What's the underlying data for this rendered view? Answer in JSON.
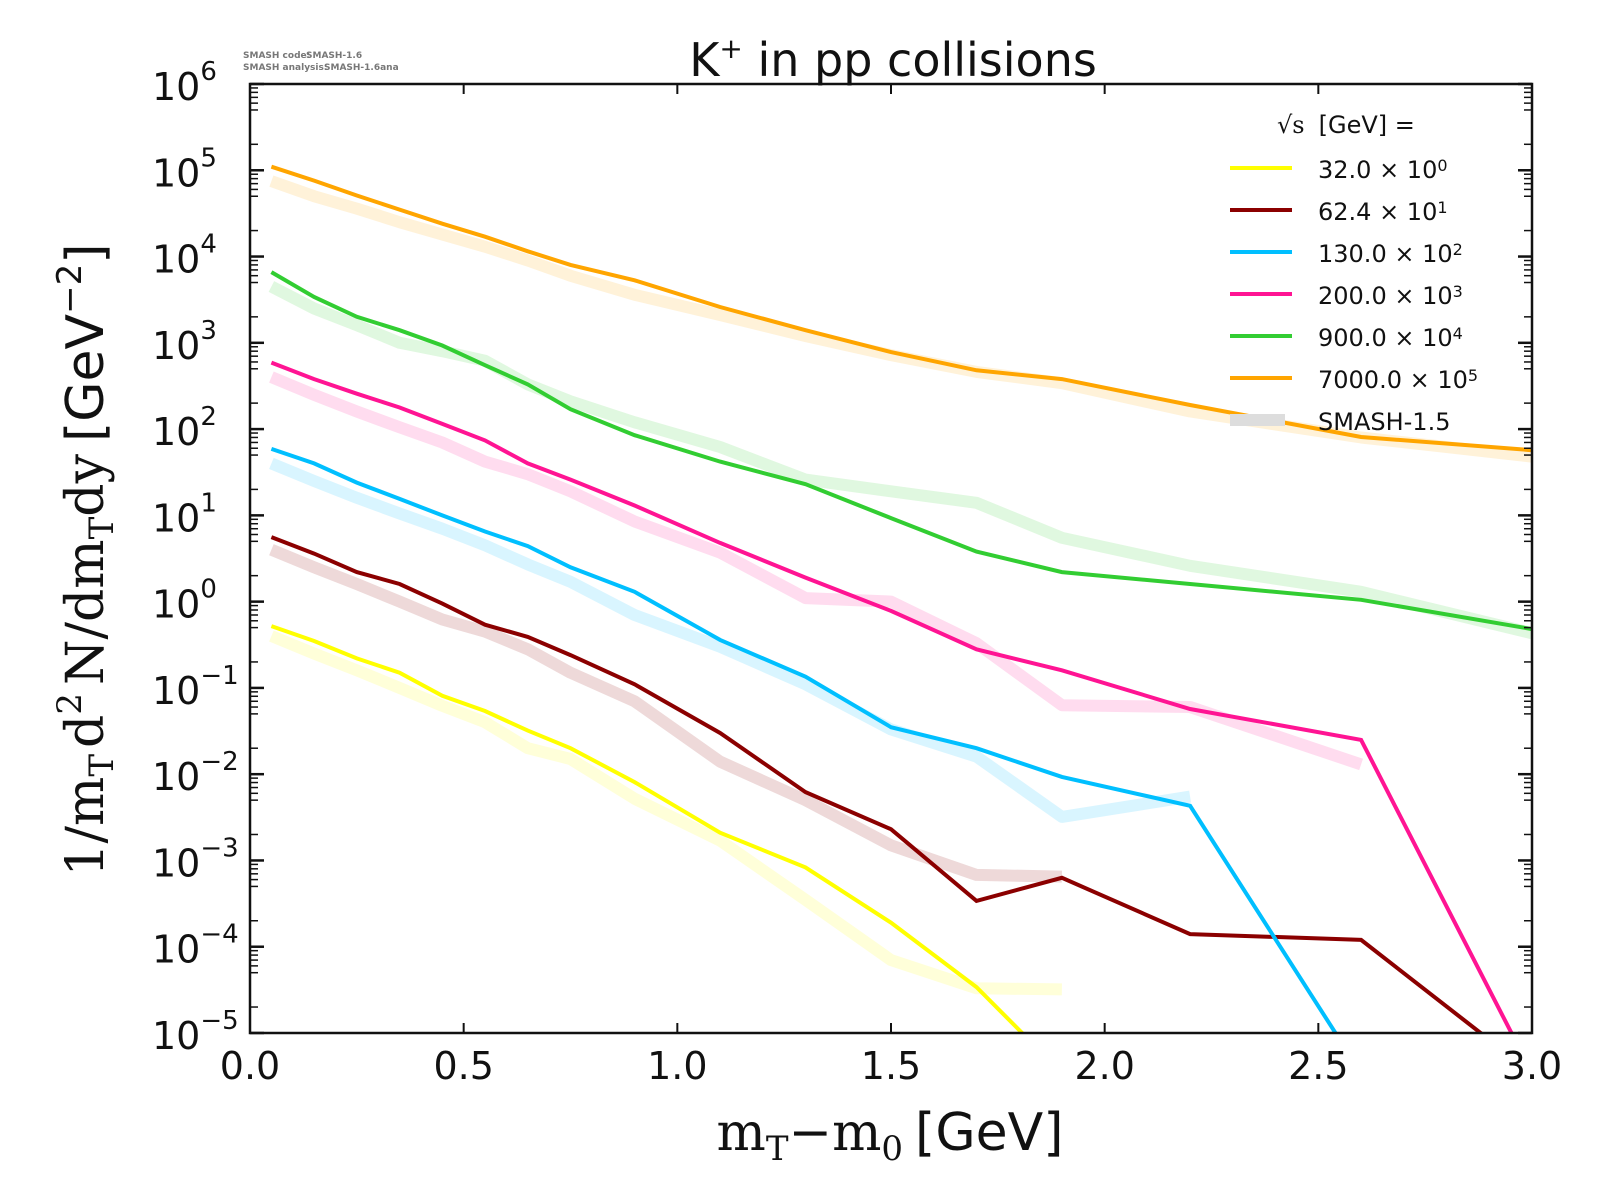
{
  "meta": {
    "code_label": "SMASH code:",
    "code_value": "SMASH-1.6",
    "analysis_label": "SMASH analysis:",
    "analysis_value": "SMASH-1.6ana"
  },
  "chart_data": {
    "type": "line",
    "title": "K+ in pp collisions",
    "title_main": "K",
    "title_sup": "+",
    "title_rest": " in pp collisions",
    "xlabel": "mT−m0 [GeV]",
    "ylabel": "1/mT d2 N/dmTdy [GeV−2]",
    "xlim": [
      0.0,
      3.0
    ],
    "ylim": [
      1e-05,
      1000000.0
    ],
    "yscale": "log",
    "grid": false,
    "x_ticks": [
      "0.0",
      "0.5",
      "1.0",
      "1.5",
      "2.0",
      "2.5",
      "3.0"
    ],
    "x_tick_values": [
      0.0,
      0.5,
      1.0,
      1.5,
      2.0,
      2.5,
      3.0
    ],
    "y_tick_exponents": [
      "6",
      "5",
      "4",
      "3",
      "2",
      "1",
      "0",
      "−1",
      "−2",
      "−3",
      "−4",
      "−5"
    ],
    "legend": {
      "placement": "top-right",
      "header": "[GeV] =",
      "header_symbol": "√s",
      "entries": [
        {
          "label": "32.0 × 10",
          "exp": "0",
          "color": "#ffff00"
        },
        {
          "label": "62.4 × 10",
          "exp": "1",
          "color": "#8b0000"
        },
        {
          "label": "130.0 × 10",
          "exp": "2",
          "color": "#00bfff"
        },
        {
          "label": "200.0 × 10",
          "exp": "3",
          "color": "#ff1493"
        },
        {
          "label": "900.0 × 10",
          "exp": "4",
          "color": "#32cd32"
        },
        {
          "label": "7000.0 × 10",
          "exp": "5",
          "color": "#ffa500"
        },
        {
          "label": "SMASH-1.5",
          "exp": "",
          "color": "#cccccc"
        }
      ]
    },
    "x": [
      0.05,
      0.15,
      0.25,
      0.35,
      0.45,
      0.55,
      0.65,
      0.75,
      0.9,
      1.1,
      1.3,
      1.5,
      1.7,
      1.9,
      2.2,
      2.6,
      3.0
    ],
    "series": [
      {
        "name": "32.0 x 10^0",
        "color": "#ffff00",
        "values": [
          0.52,
          0.35,
          0.22,
          0.15,
          0.081,
          0.054,
          0.032,
          0.02,
          0.0081,
          0.0021,
          0.00083,
          0.00019,
          3.4e-05,
          0,
          0,
          0,
          null
        ]
      },
      {
        "name": "62.4 x 10^1",
        "color": "#8b0000",
        "values": [
          5.6,
          3.6,
          2.2,
          1.6,
          0.95,
          0.54,
          0.39,
          0.24,
          0.11,
          0.03,
          0.0062,
          0.0023,
          0.00034,
          0.00063,
          0.00014,
          0.00012,
          0
        ]
      },
      {
        "name": "130.0 x 10^2",
        "color": "#00bfff",
        "values": [
          59,
          40,
          24,
          15.5,
          10,
          6.5,
          4.4,
          2.5,
          1.3,
          0.36,
          0.135,
          0.035,
          0.02,
          0.0093,
          0.0043,
          0,
          null
        ]
      },
      {
        "name": "200.0 x 10^3",
        "color": "#ff1493",
        "values": [
          590,
          380,
          257,
          178,
          115,
          74,
          40,
          26,
          13,
          4.8,
          1.9,
          0.78,
          0.28,
          0.16,
          0.057,
          0.025,
          0
        ]
      },
      {
        "name": "900.0 x 10^4",
        "color": "#32cd32",
        "values": [
          6600,
          3400,
          2000,
          1400,
          930,
          550,
          330,
          170,
          85,
          42,
          23,
          9.3,
          3.8,
          2.2,
          1.6,
          1.05,
          0.48
        ]
      },
      {
        "name": "7000.0 x 10^5",
        "color": "#ffa500",
        "values": [
          110000,
          76000,
          51000,
          35000,
          24000,
          17000,
          11500,
          8000,
          5300,
          2600,
          1400,
          780,
          480,
          380,
          190,
          81,
          57
        ]
      }
    ],
    "reference_series": [
      {
        "name": "SMASH-1.5 (32.0 x 10^0)",
        "color": "#ffff00",
        "values": [
          0.4,
          0.25,
          0.16,
          0.1,
          0.062,
          0.04,
          0.02,
          0.015,
          0.0052,
          0.0017,
          0.00035,
          7e-05,
          3.3e-05,
          3.2e-05,
          null,
          null,
          null
        ]
      },
      {
        "name": "SMASH-1.5 (62.4 x 10^1)",
        "color": "#8b0000",
        "values": [
          4.0,
          2.5,
          1.6,
          1.0,
          0.62,
          0.45,
          0.28,
          0.15,
          0.07,
          0.014,
          0.005,
          0.0015,
          0.00068,
          0.00065,
          null,
          null,
          null
        ]
      },
      {
        "name": "SMASH-1.5 (130.0 x 10^2)",
        "color": "#00bfff",
        "values": [
          40,
          25,
          16,
          10.5,
          7,
          4.5,
          2.7,
          1.7,
          0.7,
          0.3,
          0.11,
          0.033,
          0.016,
          0.0032,
          0.0055,
          null,
          null
        ]
      },
      {
        "name": "SMASH-1.5 (200.0 x 10^3)",
        "color": "#ff1493",
        "values": [
          400,
          250,
          160,
          105,
          70,
          42,
          30,
          19,
          8.5,
          3.7,
          1.1,
          1.0,
          0.33,
          0.063,
          0.06,
          0.013,
          null
        ]
      },
      {
        "name": "SMASH-1.5 (900.0 x 10^4)",
        "color": "#32cd32",
        "values": [
          4500,
          2500,
          1600,
          1000,
          800,
          620,
          330,
          210,
          120,
          62,
          26,
          19,
          14,
          5.5,
          2.6,
          1.3,
          0.43
        ]
      },
      {
        "name": "SMASH-1.5 (7000.0 x 10^5)",
        "color": "#ffa500",
        "values": [
          75000,
          50000,
          36000,
          25000,
          18000,
          13000,
          9000,
          6000,
          3600,
          2100,
          1200,
          720,
          460,
          340,
          160,
          80,
          48
        ]
      }
    ]
  }
}
